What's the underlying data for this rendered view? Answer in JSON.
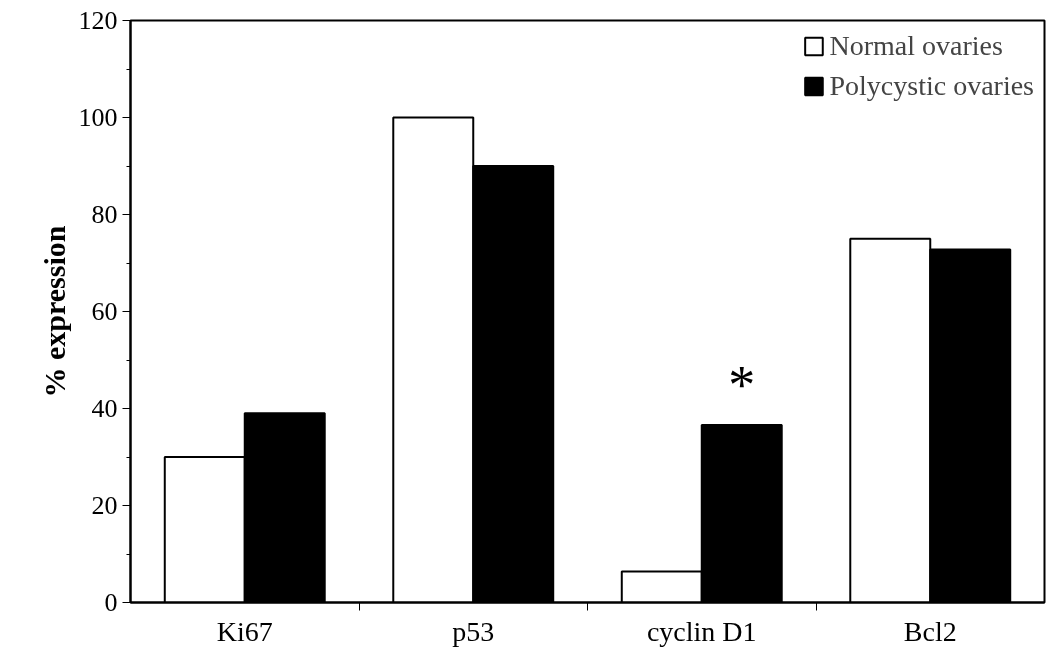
{
  "chart_data": {
    "type": "bar",
    "ylabel": "% expression",
    "categories": [
      "Ki67",
      "p53",
      "cyclin D1",
      "Bcl2"
    ],
    "series": [
      {
        "name": "Normal ovaries",
        "color": "#ffffff",
        "values": [
          30,
          100,
          6.4,
          75
        ]
      },
      {
        "name": "Polycystic ovaries",
        "color": "#000000",
        "values": [
          39,
          90,
          36.6,
          72.8
        ]
      }
    ],
    "ylim": [
      0,
      120
    ],
    "yticks": [
      0,
      {
        "value": 10,
        "label": null
      },
      20,
      {
        "value": 30,
        "label": null
      },
      40,
      {
        "value": 50,
        "label": null
      },
      60,
      {
        "value": 70,
        "label": null
      },
      80,
      {
        "value": 90,
        "label": null
      },
      100,
      {
        "value": 110,
        "label": null
      },
      120
    ],
    "annotations": [
      {
        "text": "*",
        "x": "cyclin D1",
        "y": 36.6
      }
    ],
    "grid": false,
    "legend": "top right"
  }
}
